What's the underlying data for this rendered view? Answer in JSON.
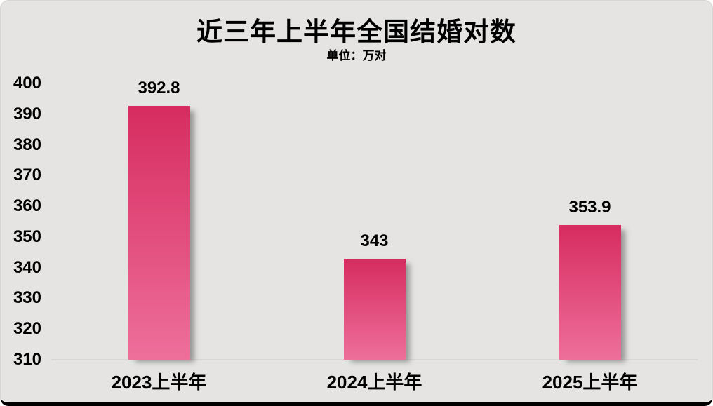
{
  "title": "近三年上半年全国结婚对数",
  "subtitle": "单位：万对",
  "chart_data": {
    "type": "bar",
    "categories": [
      "2023上半年",
      "2024上半年",
      "2025上半年"
    ],
    "values": [
      392.8,
      343,
      353.9
    ],
    "value_labels": [
      "392.8",
      "343",
      "353.9"
    ],
    "title": "近三年上半年全国结婚对数",
    "subtitle": "单位：万对",
    "xlabel": "",
    "ylabel": "",
    "ylim": [
      310,
      400
    ],
    "yticks": [
      310,
      320,
      330,
      340,
      350,
      360,
      370,
      380,
      390,
      400
    ],
    "grid": false,
    "legend": false,
    "legend_position": "none"
  },
  "colors": {
    "background": "#e5e4e2",
    "text": "#000000",
    "axis_line": "#d8d7d4",
    "bar_gradient_top": "#d62c60",
    "bar_gradient_bottom": "#ee6f9b",
    "border_bottom": "#000000"
  }
}
